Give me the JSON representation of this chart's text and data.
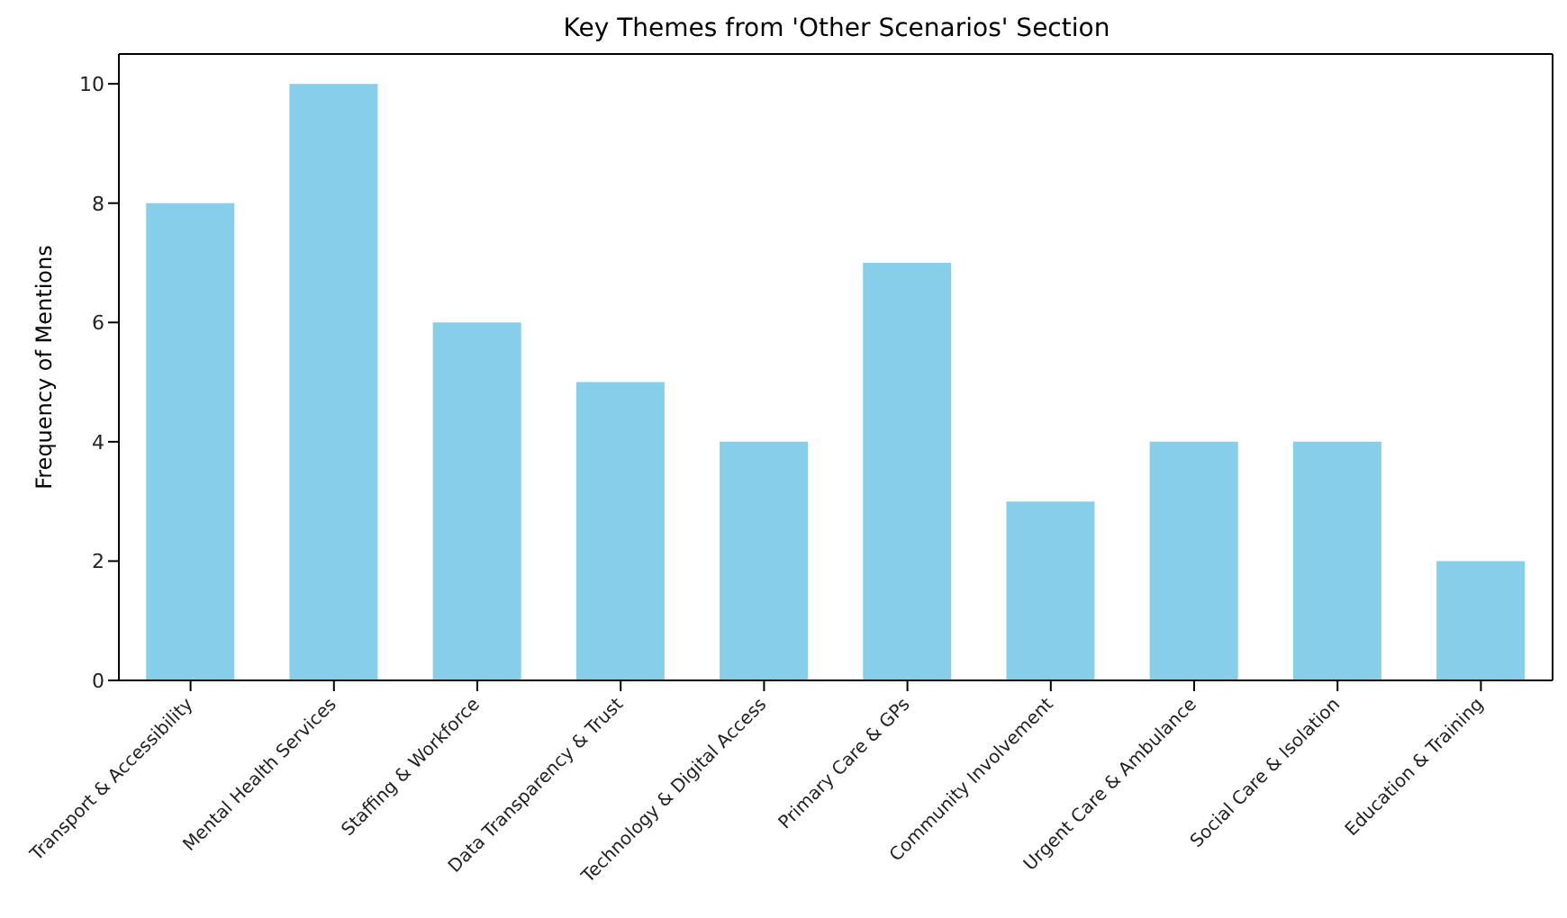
{
  "chart_data": {
    "type": "bar",
    "title": "Key Themes from 'Other Scenarios' Section",
    "ylabel": "Frequency of Mentions",
    "categories": [
      "Transport & Accessibility",
      "Mental Health Services",
      "Staffing & Workforce",
      "Data Transparency & Trust",
      "Technology & Digital Access",
      "Primary Care & GPs",
      "Community Involvement",
      "Urgent Care & Ambulance",
      "Social Care & Isolation",
      "Education & Training"
    ],
    "values": [
      8,
      10,
      6,
      5,
      4,
      7,
      3,
      4,
      4,
      2
    ],
    "color": "#87ceeb",
    "ylim": [
      0,
      10.5
    ],
    "yticks": [
      0,
      2,
      4,
      6,
      8,
      10
    ],
    "grid": false,
    "legend": false
  }
}
